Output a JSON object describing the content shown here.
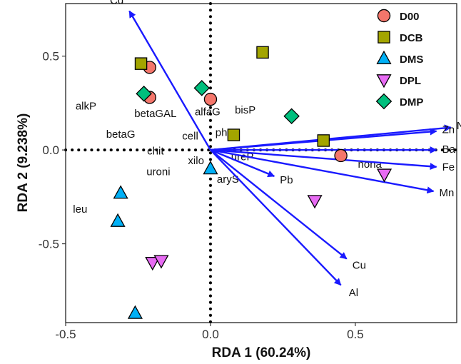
{
  "chart_data": {
    "type": "scatter",
    "subtype": "rda-biplot",
    "xlabel": "RDA 1 (60.24%)",
    "ylabel": "RDA 2 (9.238%)",
    "xlim": [
      -0.5,
      0.85
    ],
    "ylim": [
      -0.92,
      0.78
    ],
    "xticks": [
      {
        "value": -0.5,
        "label": "-0.5"
      },
      {
        "value": 0.0,
        "label": "0.0"
      },
      {
        "value": 0.5,
        "label": "0.5"
      }
    ],
    "yticks": [
      {
        "value": 0.5,
        "label": "0.5"
      },
      {
        "value": 0.0,
        "label": "0.0"
      },
      {
        "value": -0.5,
        "label": "-0.5"
      }
    ],
    "grid": false,
    "reference_lines": "dotted at x=0 and y=0",
    "legend_position": "top-right",
    "series": [
      {
        "name": "D00",
        "marker": "circle",
        "color": "#f4766b",
        "points": [
          [
            -0.21,
            0.44
          ],
          [
            -0.21,
            0.28
          ],
          [
            0.0,
            0.27
          ],
          [
            0.45,
            -0.03
          ]
        ]
      },
      {
        "name": "DCB",
        "marker": "square",
        "color": "#a3a500",
        "points": [
          [
            -0.24,
            0.46
          ],
          [
            0.18,
            0.52
          ],
          [
            0.08,
            0.08
          ],
          [
            0.39,
            0.05
          ]
        ]
      },
      {
        "name": "DMS",
        "marker": "triangle-up",
        "color": "#00b0f6",
        "points": [
          [
            -0.31,
            -0.23
          ],
          [
            -0.32,
            -0.38
          ],
          [
            -0.26,
            -0.87
          ],
          [
            0.0,
            -0.1
          ]
        ]
      },
      {
        "name": "DPL",
        "marker": "triangle-down",
        "color": "#e76bf3",
        "points": [
          [
            -0.2,
            -0.6
          ],
          [
            -0.17,
            -0.59
          ],
          [
            0.36,
            -0.27
          ],
          [
            0.6,
            -0.13
          ]
        ]
      },
      {
        "name": "DMP",
        "marker": "diamond",
        "color": "#00bf7d",
        "points": [
          [
            -0.23,
            0.3
          ],
          [
            -0.03,
            0.33
          ],
          [
            0.28,
            0.18
          ]
        ]
      }
    ],
    "vectors": [
      {
        "name": "Cd",
        "x": -0.28,
        "y": 0.74
      },
      {
        "name": "Ni",
        "x": 0.83,
        "y": 0.12
      },
      {
        "name": "Zn",
        "x": 0.78,
        "y": 0.1
      },
      {
        "name": "Ba",
        "x": 0.78,
        "y": 0.0
      },
      {
        "name": "Fe",
        "x": 0.78,
        "y": -0.09
      },
      {
        "name": "Mn",
        "x": 0.77,
        "y": -0.22
      },
      {
        "name": "Cu",
        "x": 0.47,
        "y": -0.58
      },
      {
        "name": "Al",
        "x": 0.45,
        "y": -0.72
      },
      {
        "name": "Pb",
        "x": 0.22,
        "y": -0.14
      }
    ],
    "variables": [
      {
        "name": "alkP",
        "x": -0.43,
        "y": 0.23
      },
      {
        "name": "betaGAL",
        "x": -0.19,
        "y": 0.19
      },
      {
        "name": "betaG",
        "x": -0.31,
        "y": 0.08
      },
      {
        "name": "cell",
        "x": -0.07,
        "y": 0.07
      },
      {
        "name": "chit",
        "x": -0.19,
        "y": -0.01
      },
      {
        "name": "xilo",
        "x": -0.05,
        "y": -0.06
      },
      {
        "name": "uroni",
        "x": -0.18,
        "y": -0.12
      },
      {
        "name": "leu",
        "x": -0.45,
        "y": -0.32
      },
      {
        "name": "alfaG",
        "x": -0.01,
        "y": 0.2
      },
      {
        "name": "bisP",
        "x": 0.12,
        "y": 0.21
      },
      {
        "name": "phoP",
        "x": 0.06,
        "y": 0.09
      },
      {
        "name": "ureP",
        "x": 0.11,
        "y": -0.04
      },
      {
        "name": "aryS",
        "x": 0.06,
        "y": -0.16
      },
      {
        "name": "nona",
        "x": 0.55,
        "y": -0.08
      }
    ]
  }
}
